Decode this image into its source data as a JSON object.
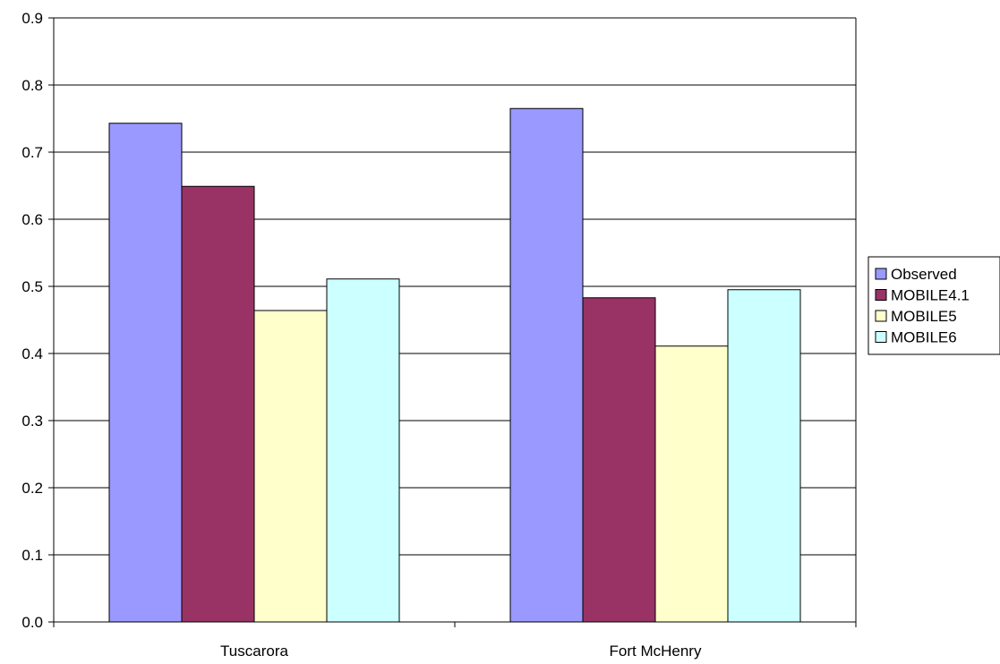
{
  "chart_data": {
    "type": "bar",
    "categories": [
      "Tuscarora",
      "Fort McHenry"
    ],
    "series": [
      {
        "name": "Observed",
        "values": [
          0.743,
          0.765
        ],
        "color": "#9999ff"
      },
      {
        "name": "MOBILE4.1",
        "values": [
          0.649,
          0.483
        ],
        "color": "#993366"
      },
      {
        "name": "MOBILE5",
        "values": [
          0.464,
          0.411
        ],
        "color": "#ffffcc"
      },
      {
        "name": "MOBILE6",
        "values": [
          0.511,
          0.495
        ],
        "color": "#ccffff"
      }
    ],
    "ylim": [
      0,
      0.9
    ],
    "yticks": [
      "0.0",
      "0.1",
      "0.2",
      "0.3",
      "0.4",
      "0.5",
      "0.6",
      "0.7",
      "0.8",
      "0.9"
    ],
    "grid": true,
    "legend_position": "right"
  }
}
